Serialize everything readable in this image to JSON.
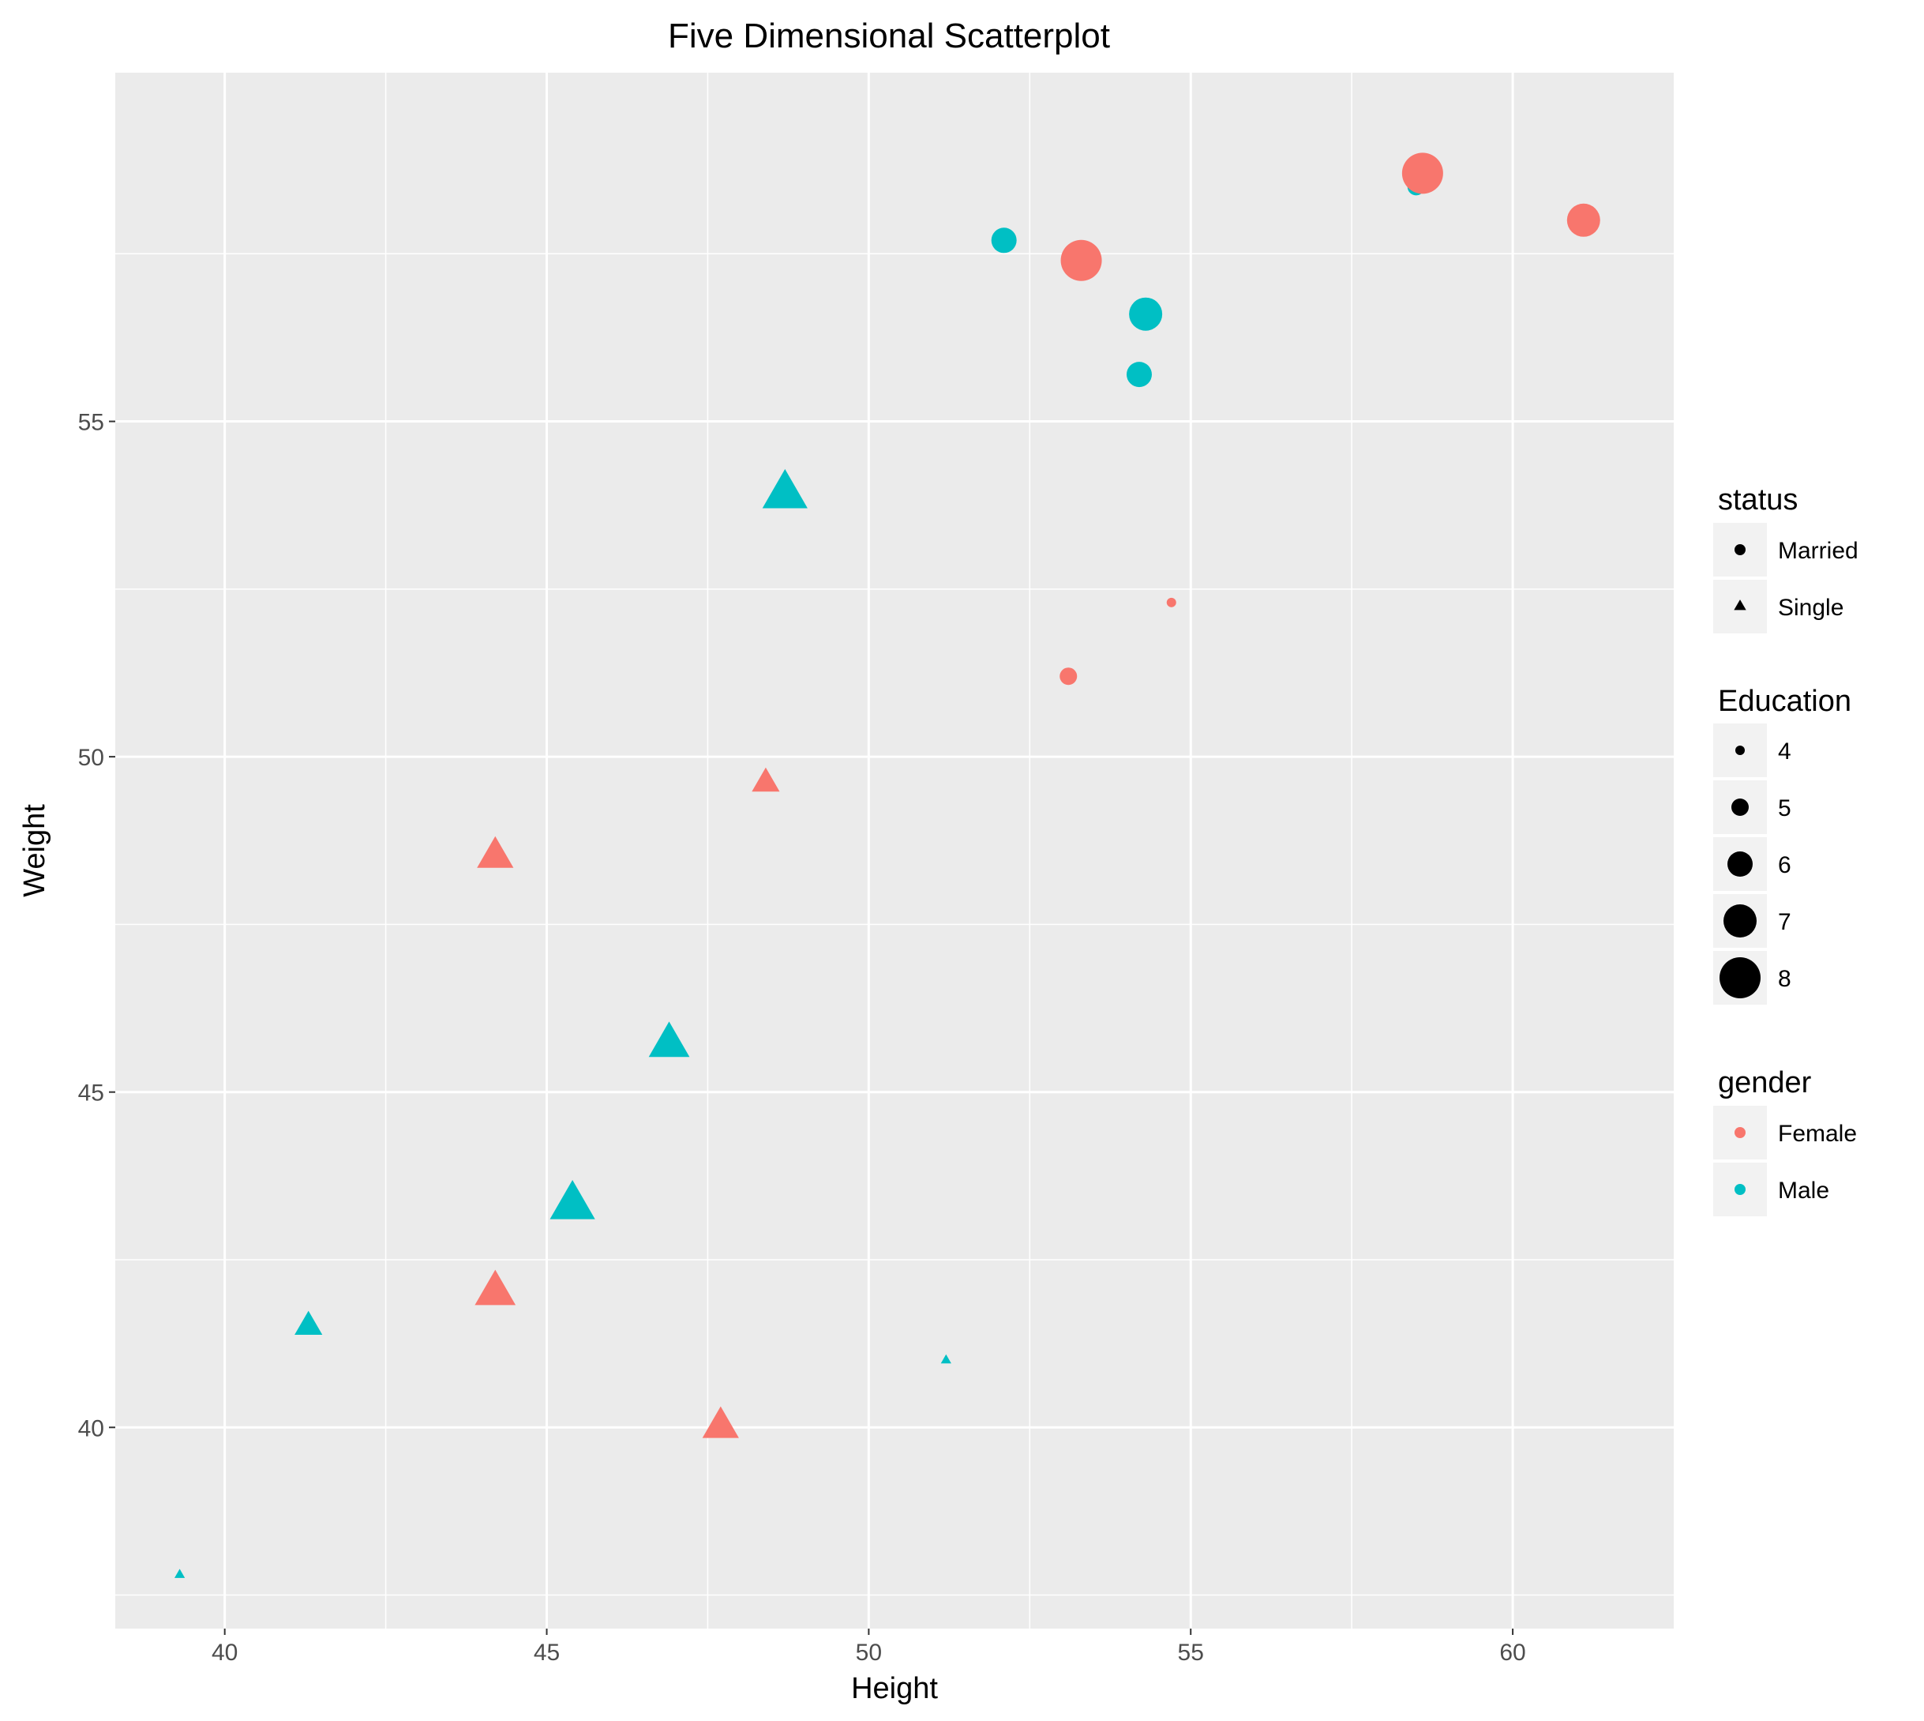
{
  "chart_data": {
    "type": "scatter",
    "title": "Five Dimensional Scatterplot",
    "xlabel": "Height",
    "ylabel": "Weight",
    "xlim": [
      38.3,
      62.5
    ],
    "ylim": [
      37.0,
      60.2
    ],
    "x_ticks": [
      40,
      45,
      50,
      55,
      60
    ],
    "y_ticks": [
      40,
      45,
      50,
      55
    ],
    "x_tick_labels": [
      "40",
      "45",
      "50",
      "55",
      "60"
    ],
    "y_tick_labels": [
      "40",
      "45",
      "50",
      "55"
    ],
    "grid": true,
    "background": "#ebebeb",
    "gridline_color": "#ffffff",
    "colors": {
      "Female": "#f8766d",
      "Male": "#00bfc4",
      "legend_key_bg": "#f2f2f2",
      "legend_key_symbol": "#000000"
    },
    "points": [
      {
        "x": 52.1,
        "y": 57.7,
        "gender": "Male",
        "status": "Married",
        "education": 6
      },
      {
        "x": 53.3,
        "y": 57.4,
        "gender": "Female",
        "status": "Married",
        "education": 8
      },
      {
        "x": 54.3,
        "y": 56.6,
        "gender": "Male",
        "status": "Married",
        "education": 7
      },
      {
        "x": 54.2,
        "y": 55.7,
        "gender": "Male",
        "status": "Married",
        "education": 6
      },
      {
        "x": 58.5,
        "y": 58.5,
        "gender": "Male",
        "status": "Married",
        "education": 5
      },
      {
        "x": 58.6,
        "y": 58.7,
        "gender": "Female",
        "status": "Married",
        "education": 8
      },
      {
        "x": 61.1,
        "y": 58.0,
        "gender": "Female",
        "status": "Married",
        "education": 7
      },
      {
        "x": 54.7,
        "y": 52.3,
        "gender": "Female",
        "status": "Married",
        "education": 4
      },
      {
        "x": 53.1,
        "y": 51.2,
        "gender": "Female",
        "status": "Married",
        "education": 5
      },
      {
        "x": 48.7,
        "y": 53.9,
        "gender": "Male",
        "status": "Single",
        "education": 8
      },
      {
        "x": 48.4,
        "y": 49.6,
        "gender": "Female",
        "status": "Single",
        "education": 6
      },
      {
        "x": 44.2,
        "y": 48.5,
        "gender": "Female",
        "status": "Single",
        "education": 7
      },
      {
        "x": 46.9,
        "y": 45.7,
        "gender": "Male",
        "status": "Single",
        "education": 7.5
      },
      {
        "x": 45.4,
        "y": 43.3,
        "gender": "Male",
        "status": "Single",
        "education": 8
      },
      {
        "x": 44.2,
        "y": 42.0,
        "gender": "Female",
        "status": "Single",
        "education": 7.5
      },
      {
        "x": 41.3,
        "y": 41.5,
        "gender": "Male",
        "status": "Single",
        "education": 6
      },
      {
        "x": 51.2,
        "y": 41.0,
        "gender": "Male",
        "status": "Single",
        "education": 4
      },
      {
        "x": 47.7,
        "y": 40.0,
        "gender": "Female",
        "status": "Single",
        "education": 7
      },
      {
        "x": 39.3,
        "y": 37.8,
        "gender": "Male",
        "status": "Single",
        "education": 4
      }
    ],
    "legends": {
      "status": {
        "title": "status",
        "items": [
          "Married",
          "Single"
        ]
      },
      "education": {
        "title": "Education",
        "items": [
          "4",
          "5",
          "6",
          "7",
          "8"
        ],
        "values": [
          4,
          5,
          6,
          7,
          8
        ]
      },
      "gender": {
        "title": "gender",
        "items": [
          "Female",
          "Male"
        ]
      }
    }
  }
}
